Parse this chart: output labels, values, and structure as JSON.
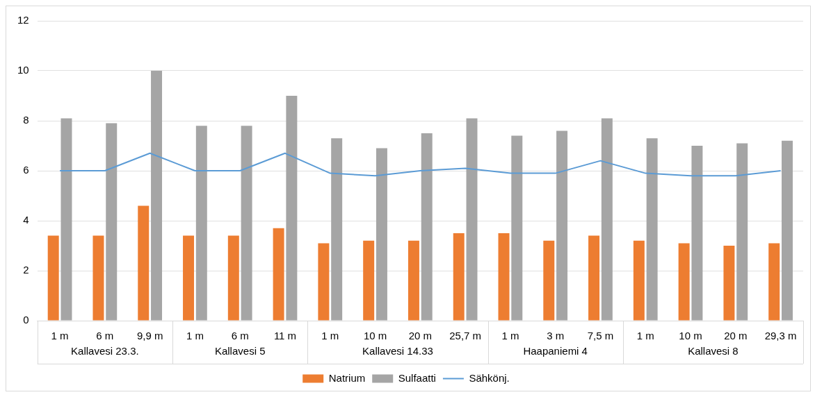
{
  "chart_data": {
    "type": "bar",
    "categories": [
      "1 m",
      "6 m",
      "9,9 m",
      "1 m",
      "6 m",
      "11 m",
      "1 m",
      "10 m",
      "20 m",
      "25,7 m",
      "1 m",
      "3 m",
      "7,5 m",
      "1 m",
      "10 m",
      "20 m",
      "29,3 m"
    ],
    "series": [
      {
        "name": "Natrium",
        "color": "#ed7d31",
        "values": [
          3.4,
          3.4,
          4.6,
          3.4,
          3.4,
          3.7,
          3.1,
          3.2,
          3.2,
          3.5,
          3.5,
          3.2,
          3.4,
          3.2,
          3.1,
          3.0,
          3.1
        ]
      },
      {
        "name": "Sulfaatti",
        "color": "#a5a5a5",
        "values": [
          8.1,
          7.9,
          10,
          7.8,
          7.8,
          9.0,
          7.3,
          6.9,
          7.5,
          8.1,
          7.4,
          7.6,
          8.1,
          7.3,
          7.0,
          7.1,
          7.2
        ]
      },
      {
        "name": "Sähkönj.",
        "type": "line",
        "color": "#5b9bd5",
        "values": [
          6.0,
          6.0,
          6.7,
          6.0,
          6.0,
          6.7,
          5.9,
          5.8,
          6.0,
          6.1,
          5.9,
          5.9,
          6.4,
          5.9,
          5.8,
          5.8,
          6.0
        ]
      }
    ],
    "annotations": [
      "Kallavesi 23.3.",
      "Kallavesi 5",
      "Kallavesi 14.33",
      "Haapaniemi 4",
      "Kallavesi 8"
    ],
    "ylim": [
      0,
      12
    ],
    "yticks": [
      0,
      2,
      4,
      6,
      8,
      10,
      12
    ],
    "grid": "y",
    "legend": "bottom",
    "marker": "none"
  }
}
